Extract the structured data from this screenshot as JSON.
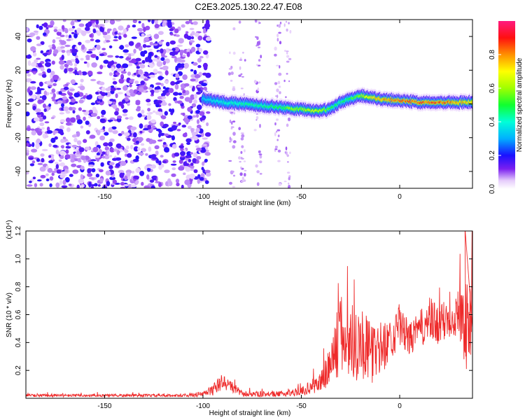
{
  "title": "C2E3.2025.130.22.47.E08",
  "colors": {
    "snr_line": "#ee2a2a",
    "noise_purple": "#6a1cf0",
    "frame": "#000000"
  },
  "chart_data": [
    {
      "type": "heatmap",
      "title": "C2E3.2025.130.22.47.E08",
      "xlabel": "Height of straight line (km)",
      "ylabel": "Frequency (Hz)",
      "xlim": [
        -190,
        37
      ],
      "ylim": [
        -50,
        50
      ],
      "xticks": [
        -150,
        -100,
        -50,
        0
      ],
      "xtick_labels": [
        "-150",
        "-100",
        "-50",
        "0"
      ],
      "yticks": [
        40,
        20,
        0,
        -20,
        -40
      ],
      "ytick_labels": [
        "40",
        "20",
        "0",
        "-20",
        "-40"
      ],
      "colorbar": {
        "label": "Normalized spectral amplitude",
        "range": [
          0,
          1
        ],
        "ticks": [
          0.0,
          0.2,
          0.4,
          0.6,
          0.8
        ],
        "tick_labels": [
          "0.0",
          "0.2",
          "0.4",
          "0.6",
          "0.8"
        ]
      },
      "signal_band": {
        "description": "ridge of high amplitude near 0 Hz from -100 km to top of range",
        "x": [
          -100,
          -90,
          -80,
          -70,
          -60,
          -55,
          -50,
          -45,
          -40,
          -35,
          -30,
          -25,
          -20,
          -15,
          -10,
          0,
          10,
          20,
          30,
          37
        ],
        "center_hz": [
          3,
          1,
          0,
          -1,
          -2,
          -3,
          -3,
          -4,
          -4,
          -3,
          1,
          3,
          5,
          4,
          3,
          2,
          1,
          1,
          1,
          1
        ],
        "peak_amplitude": [
          0.35,
          0.4,
          0.45,
          0.45,
          0.5,
          0.6,
          0.6,
          0.65,
          0.65,
          0.5,
          0.45,
          0.5,
          0.6,
          0.7,
          0.8,
          0.85,
          0.85,
          0.85,
          0.8,
          0.75
        ]
      },
      "noise_region": {
        "x_range": [
          -190,
          -100
        ],
        "amplitude_range": [
          0.0,
          0.2
        ]
      }
    },
    {
      "type": "line",
      "xlabel": "Height of straight line (km)",
      "ylabel": "SNR (10 * v/v)",
      "scale_label": "(x10⁴)",
      "xlim": [
        -190,
        37
      ],
      "ylim": [
        0,
        1.2
      ],
      "xticks": [
        -150,
        -100,
        -50,
        0
      ],
      "xtick_labels": [
        "-150",
        "-100",
        "-50",
        "0"
      ],
      "yticks": [
        0.2,
        0.4,
        0.6,
        0.8,
        1.0,
        1.2
      ],
      "ytick_labels": [
        "0.2",
        "0.4",
        "0.6",
        "0.8",
        "1.0",
        "1.2"
      ],
      "series": [
        {
          "name": "SNR",
          "envelope_x": [
            -190,
            -150,
            -110,
            -100,
            -95,
            -90,
            -85,
            -80,
            -70,
            -60,
            -50,
            -45,
            -40,
            -35,
            -30,
            -25,
            -20,
            -15,
            -10,
            -5,
            0,
            5,
            10,
            15,
            20,
            25,
            30,
            33,
            35,
            37
          ],
          "envelope_y": [
            0.02,
            0.02,
            0.02,
            0.03,
            0.06,
            0.12,
            0.08,
            0.03,
            0.03,
            0.03,
            0.05,
            0.08,
            0.12,
            0.25,
            0.45,
            0.4,
            0.42,
            0.32,
            0.35,
            0.42,
            0.52,
            0.42,
            0.5,
            0.55,
            0.52,
            0.58,
            0.62,
            0.6,
            0.45,
            0.7
          ],
          "spike_amplitude": [
            0.01,
            0.01,
            0.01,
            0.02,
            0.04,
            0.06,
            0.04,
            0.02,
            0.02,
            0.02,
            0.03,
            0.05,
            0.08,
            0.18,
            0.3,
            0.3,
            0.28,
            0.22,
            0.2,
            0.15,
            0.15,
            0.12,
            0.12,
            0.18,
            0.15,
            0.15,
            0.18,
            0.35,
            0.3,
            0.25
          ]
        }
      ]
    }
  ]
}
